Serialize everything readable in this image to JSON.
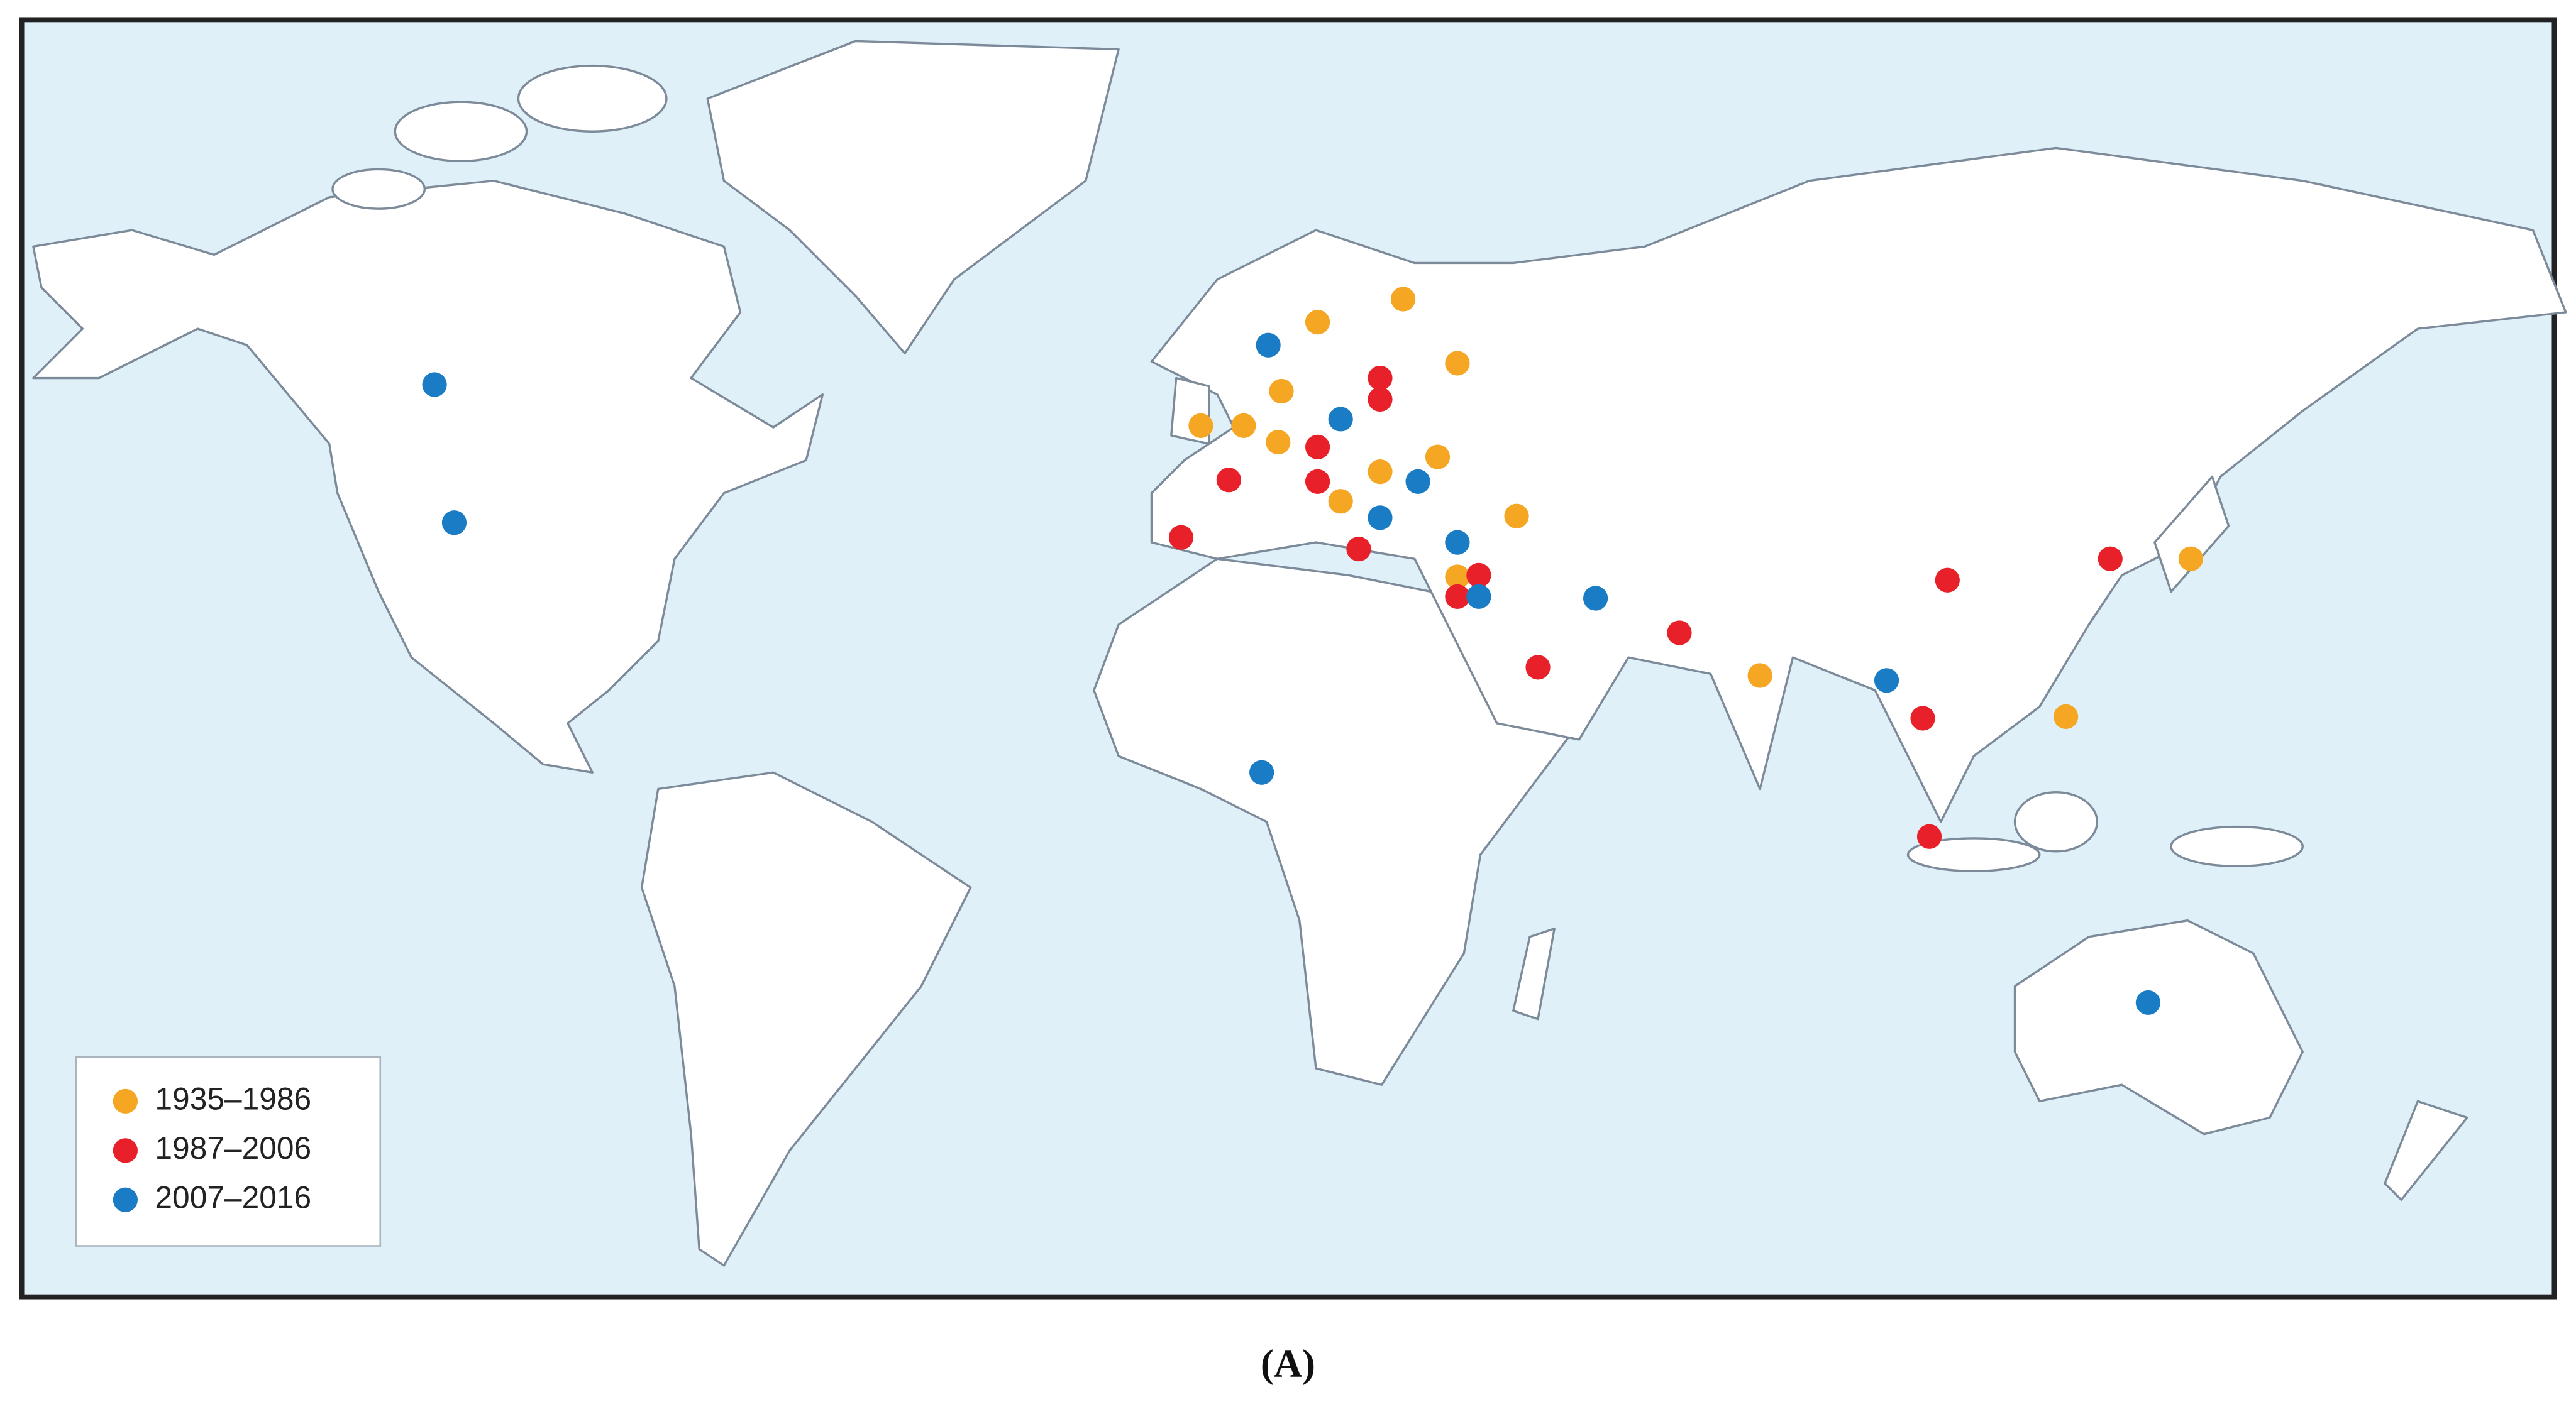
{
  "legend": [
    {
      "name": "1935–1986",
      "color": "#f5a623"
    },
    {
      "name": "1987–2006",
      "color": "#e8202a"
    },
    {
      "name": "2007–2016",
      "color": "#1a7cc4"
    }
  ],
  "caption": "(A)"
}
